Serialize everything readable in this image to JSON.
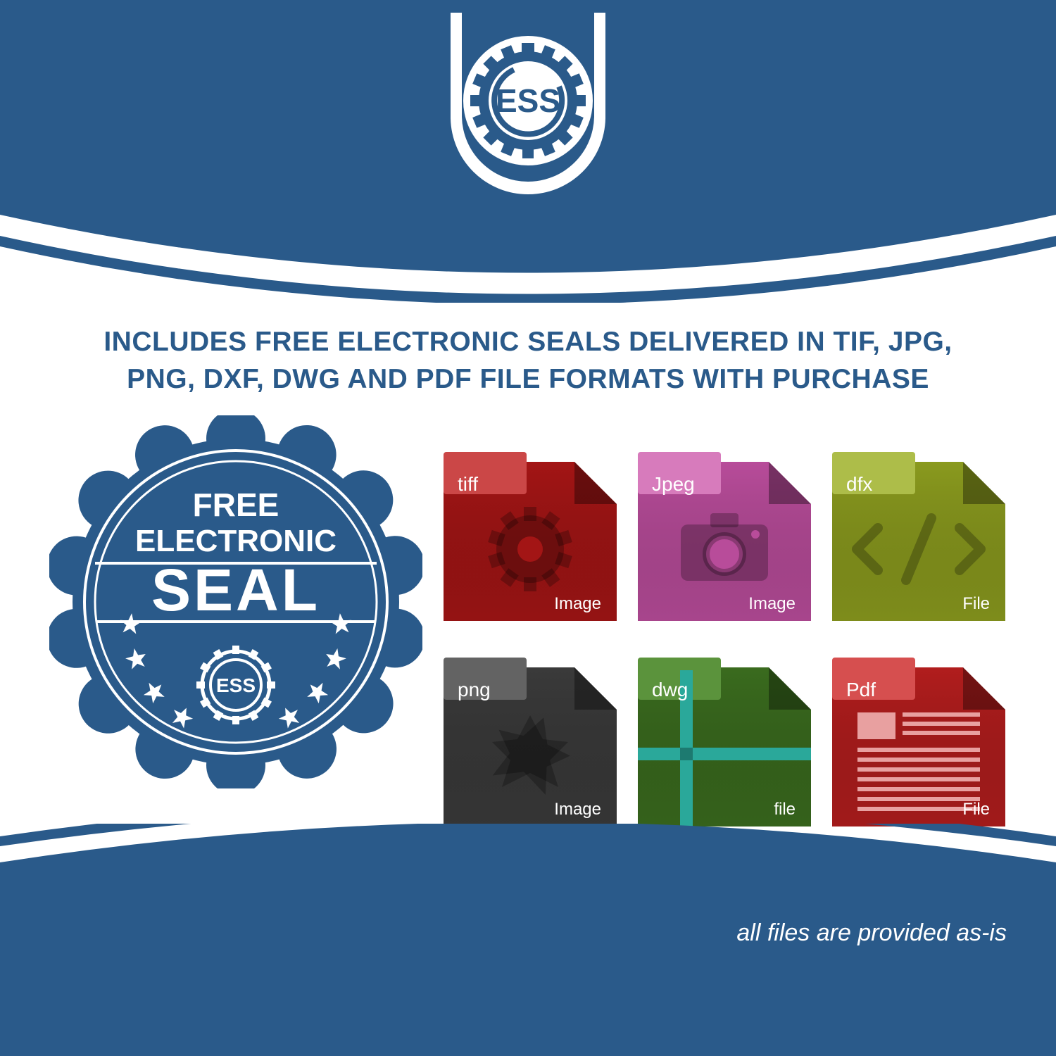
{
  "colors": {
    "brand_blue": "#2a5a8a",
    "white": "#ffffff",
    "tiff_bg": "#a31515",
    "tiff_tab": "#c73838",
    "jpeg_bg": "#b84c9a",
    "jpeg_tab": "#d470b7",
    "dfx_bg": "#8a9a1e",
    "dfx_tab": "#a6b83a",
    "png_bg": "#3a3a3a",
    "png_tab": "#565656",
    "dwg_bg": "#3a6b1e",
    "dwg_tab": "#4e8a2c",
    "dwg_accent": "#2aa89a",
    "pdf_bg": "#b11d1d",
    "pdf_tab": "#d34040",
    "pdf_accent": "#e8a0a0"
  },
  "logo": {
    "text": "ESS"
  },
  "headline": {
    "line1": "INCLUDES FREE ELECTRONIC SEALS DELIVERED IN TIF, JPG,",
    "line2": "PNG, DXF, DWG AND PDF FILE FORMATS WITH PURCHASE",
    "color": "#2a5a8a",
    "font_size": 39
  },
  "seal": {
    "line1": "FREE",
    "line2": "ELECTRONIC",
    "line3": "SEAL",
    "gear_text": "ESS",
    "color": "#2a5a8a",
    "text_color": "#ffffff",
    "star_count": 10
  },
  "files": [
    {
      "tab": "tiff",
      "sub": "Image",
      "bg": "#a31515",
      "tab_bg": "#c73838",
      "glyph": "gear"
    },
    {
      "tab": "Jpeg",
      "sub": "Image",
      "bg": "#b84c9a",
      "tab_bg": "#d470b7",
      "glyph": "camera"
    },
    {
      "tab": "dfx",
      "sub": "File",
      "bg": "#8a9a1e",
      "tab_bg": "#a6b83a",
      "glyph": "code"
    },
    {
      "tab": "png",
      "sub": "Image",
      "bg": "#3a3a3a",
      "tab_bg": "#565656",
      "glyph": "burst"
    },
    {
      "tab": "dwg",
      "sub": "file",
      "bg": "#3a6b1e",
      "tab_bg": "#4e8a2c",
      "glyph": "cross"
    },
    {
      "tab": "Pdf",
      "sub": "File",
      "bg": "#b11d1d",
      "tab_bg": "#d34040",
      "glyph": "doc"
    }
  ],
  "disclaimer": "all files are provided as-is"
}
